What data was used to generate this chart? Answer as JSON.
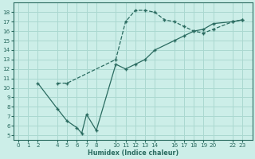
{
  "xlabel": "Humidex (Indice chaleur)",
  "bg_color": "#cceee8",
  "grid_color": "#aad8d0",
  "line_color": "#2a6b60",
  "xlim": [
    -0.5,
    24
  ],
  "ylim": [
    4.5,
    19
  ],
  "xticks": [
    0,
    1,
    2,
    4,
    5,
    6,
    7,
    8,
    10,
    11,
    12,
    13,
    14,
    16,
    17,
    18,
    19,
    20,
    22,
    23
  ],
  "yticks": [
    5,
    6,
    7,
    8,
    9,
    10,
    11,
    12,
    13,
    14,
    15,
    16,
    17,
    18
  ],
  "upper_x": [
    4,
    5,
    10,
    11,
    12,
    13,
    14,
    15,
    16,
    17,
    18,
    19,
    20,
    22,
    23
  ],
  "upper_y": [
    10.5,
    10.5,
    13.0,
    17.0,
    18.2,
    18.2,
    18.0,
    17.2,
    17.0,
    16.5,
    16.0,
    15.8,
    16.2,
    17.0,
    17.2
  ],
  "lower_x": [
    2,
    4,
    5,
    6,
    6.5,
    7,
    8,
    10,
    11,
    12,
    13,
    14,
    16,
    17,
    18,
    19,
    20,
    22,
    23
  ],
  "lower_y": [
    10.5,
    7.8,
    6.5,
    5.8,
    5.2,
    7.2,
    5.5,
    12.5,
    12.0,
    12.5,
    13.0,
    14.0,
    15.0,
    15.5,
    16.0,
    16.2,
    16.8,
    17.0,
    17.2
  ],
  "tick_fontsize": 5.2,
  "xlabel_fontsize": 5.8
}
